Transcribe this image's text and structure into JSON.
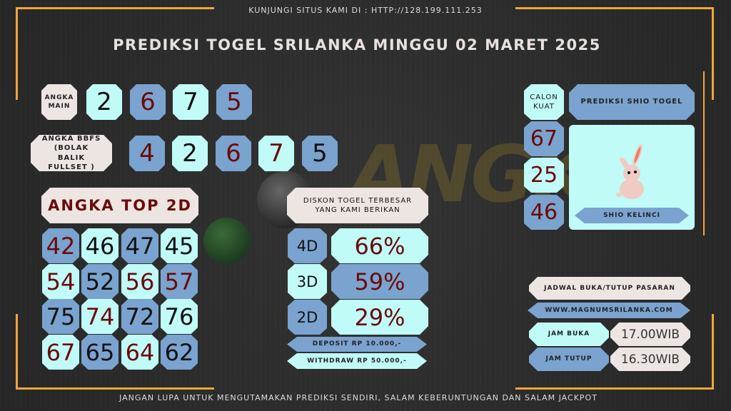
{
  "header": {
    "visit_text": "KUNJUNGI SITUS KAMI DI : HTTP://128.199.111.253",
    "title": "PREDIKSI TOGEL SRILANKA MINGGU 02 MARET 2025"
  },
  "angka_main": {
    "label": "ANGKA MAIN",
    "digits": [
      "2",
      "6",
      "7",
      "5"
    ]
  },
  "bbfs": {
    "label": "ANGKA BBFS (BOLAK BALIK FULLSET )",
    "digits": [
      "4",
      "2",
      "6",
      "7",
      "5"
    ]
  },
  "top2d": {
    "label": "ANGKA TOP 2D",
    "rows": [
      [
        "42",
        "46",
        "47",
        "45"
      ],
      [
        "54",
        "52",
        "56",
        "57"
      ],
      [
        "75",
        "74",
        "72",
        "76"
      ],
      [
        "67",
        "65",
        "64",
        "62"
      ]
    ]
  },
  "diskon": {
    "label": "DISKON TOGEL TERBESAR YANG KAMI BERIKAN",
    "items": [
      {
        "type": "4D",
        "value": "66%"
      },
      {
        "type": "3D",
        "value": "59%"
      },
      {
        "type": "2D",
        "value": "29%"
      }
    ],
    "deposit": "DEPOSIT RP 10.000,-",
    "withdraw": "WITHDRAW RP 50.000,-"
  },
  "calon_kuat": {
    "label": "CALON KUAT",
    "numbers": [
      "67",
      "25",
      "46"
    ]
  },
  "shio": {
    "title": "PREDIKSI SHIO TOGEL",
    "name": "SHIO KELINCI",
    "icon": "rabbit-icon"
  },
  "jadwal": {
    "title": "JADWAL BUKA/TUTUP PASARAN",
    "website": "WWW.MAGNUMSRILANKA.COM",
    "buka_label": "JAM BUKA",
    "buka_value": "17.00WIB",
    "tutup_label": "JAM TUTUP",
    "tutup_value": "16.30WIB"
  },
  "watermark": "ANGKA GAIB",
  "footer": {
    "text": "JANGAN LUPA UNTUK MENGUTAMAKAN PREDIKSI SENDIRI, SALAM KEBERUNTUNGAN DAN SALAM JACKPOT"
  },
  "colors": {
    "cyan": "#c0fbf7",
    "blue": "#7aa3cf",
    "cream": "#ede5e2",
    "dark_red": "#6b0a0a",
    "frame": "#f0a53a"
  }
}
